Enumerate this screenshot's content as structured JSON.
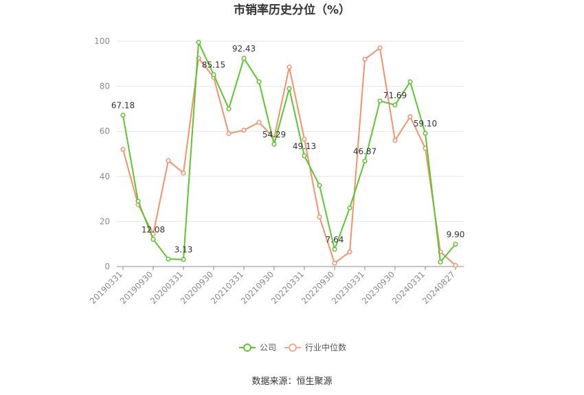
{
  "chart_data": {
    "type": "line",
    "title": "市销率历史分位（%）",
    "xlabel": "",
    "ylabel": "",
    "ylim": [
      0,
      100
    ],
    "yticks": [
      0,
      20,
      40,
      60,
      80,
      100
    ],
    "grid": true,
    "legend_position": "bottom",
    "x": [
      "20190331",
      "20190630",
      "20190930",
      "20191231",
      "20200331",
      "20200630",
      "20200930",
      "20201231",
      "20210331",
      "20210630",
      "20210930",
      "20211231",
      "20220331",
      "20220630",
      "20220930",
      "20221231",
      "20230331",
      "20230630",
      "20230930",
      "20231231",
      "20240331",
      "20240630",
      "20240827"
    ],
    "x_tick_labels": [
      "20190331",
      "20190930",
      "20200331",
      "20200930",
      "20210331",
      "20210930",
      "20220331",
      "20220930",
      "20230331",
      "20230930",
      "20240331",
      "20240827"
    ],
    "series": [
      {
        "name": "公司",
        "color": "#5cc52e",
        "values": [
          67.18,
          29.0,
          12.08,
          3.3,
          3.13,
          99.5,
          85.15,
          70.0,
          92.43,
          82.0,
          54.29,
          79.0,
          49.13,
          36.0,
          7.64,
          26.0,
          46.87,
          73.5,
          71.69,
          82.0,
          59.1,
          2.0,
          9.9
        ],
        "labels": [
          "67.18",
          "",
          "12.08",
          "",
          "3.13",
          "",
          "85.15",
          "",
          "92.43",
          "",
          "54.29",
          "",
          "49.13",
          "",
          "7.64",
          "",
          "46.87",
          "",
          "71.69",
          "",
          "59.10",
          "",
          "9.90"
        ]
      },
      {
        "name": "行业中位数",
        "color": "#f5916a",
        "values": [
          52.0,
          27.5,
          14.5,
          47.0,
          41.5,
          92.5,
          84.0,
          59.0,
          60.5,
          64.0,
          57.0,
          88.5,
          56.5,
          22.0,
          1.5,
          6.5,
          92.0,
          97.0,
          56.0,
          66.5,
          52.5,
          6.5,
          0.5
        ]
      }
    ]
  },
  "legend": {
    "items": [
      "公司",
      "行业中位数"
    ]
  },
  "source_text": "数据来源：恒生聚源"
}
